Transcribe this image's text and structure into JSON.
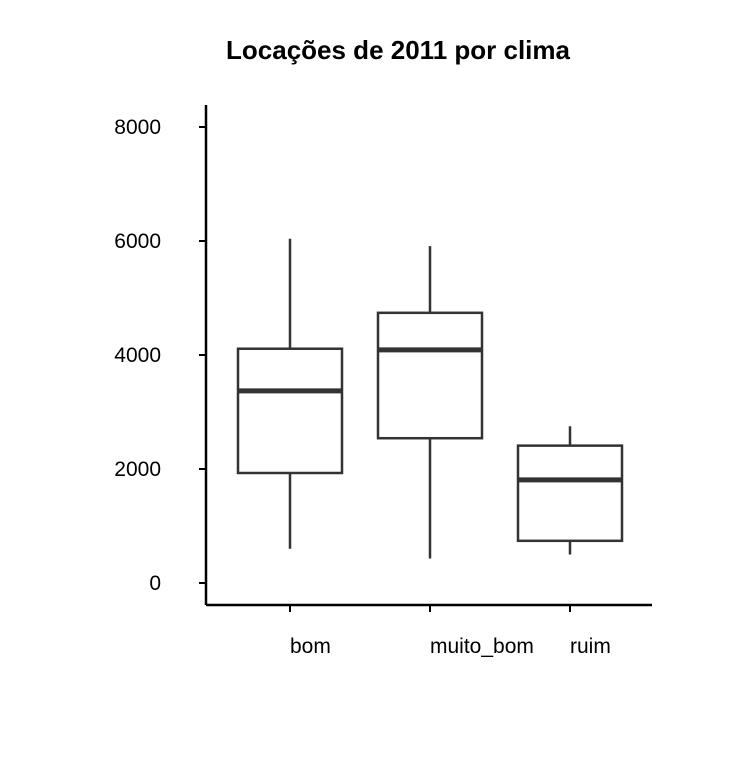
{
  "chart_data": {
    "type": "boxplot",
    "title": "Locações de 2011 por clima",
    "xlabel": "",
    "ylabel": "",
    "categories": [
      "bom",
      "muito_bom",
      "ruim"
    ],
    "boxes": [
      {
        "category": "bom",
        "whisker_low": 600,
        "q1": 1930,
        "median": 3370,
        "q3": 4110,
        "whisker_high": 6040
      },
      {
        "category": "muito_bom",
        "whisker_low": 430,
        "q1": 2540,
        "median": 4090,
        "q3": 4740,
        "whisker_high": 5910
      },
      {
        "category": "ruim",
        "whisker_low": 500,
        "q1": 740,
        "median": 1810,
        "q3": 2410,
        "whisker_high": 2750
      }
    ],
    "yticks": [
      0,
      2000,
      4000,
      6000,
      8000
    ],
    "ytick_labels": [
      "0",
      "2000",
      "4000",
      "6000",
      "8000"
    ],
    "ylim": [
      -400,
      8400
    ],
    "grid": false,
    "legend": "none"
  }
}
